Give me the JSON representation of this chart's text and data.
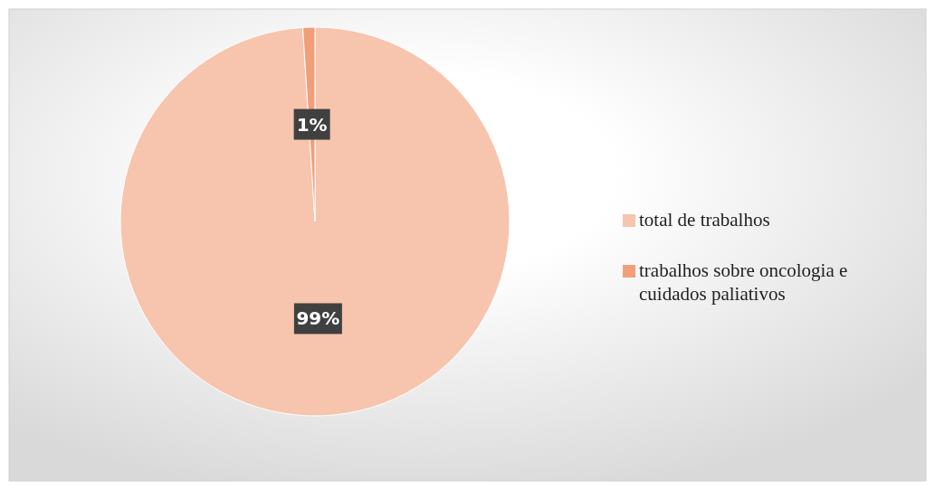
{
  "chart_data": {
    "type": "pie",
    "categories": [
      "total de trabalhos",
      "trabalhos sobre oncologia e cuidados paliativos"
    ],
    "values": [
      99,
      1
    ],
    "colors": [
      "#f7c4ae",
      "#f09f78"
    ],
    "value_labels": [
      "99%",
      "1%"
    ],
    "legend": "right"
  }
}
